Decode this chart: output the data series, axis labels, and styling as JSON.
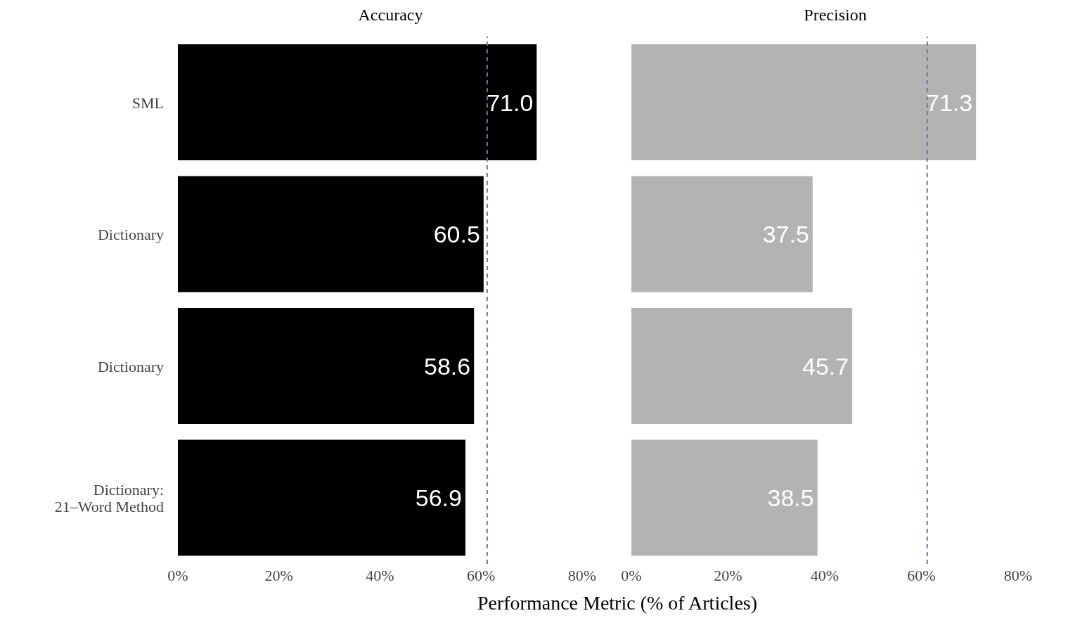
{
  "chart_data": [
    {
      "type": "bar",
      "orientation": "horizontal",
      "title": "Accuracy",
      "xlabel": "Performance Metric (% of Articles)",
      "categories": [
        "SML",
        "Dictionary",
        "Dictionary",
        "Dictionary: 21–Word Method"
      ],
      "values": [
        71.0,
        60.5,
        58.6,
        56.9
      ],
      "value_labels": [
        "71.0",
        "60.5",
        "58.6",
        "56.9"
      ],
      "color": "#000000",
      "xlim": [
        0,
        80
      ],
      "xticks": [
        {
          "value": 0,
          "label": "0%"
        },
        {
          "value": 20,
          "label": "20%"
        },
        {
          "value": 40,
          "label": "40%"
        },
        {
          "value": 60,
          "label": "60%"
        },
        {
          "value": 80,
          "label": "80%"
        }
      ],
      "ref_lines": [
        {
          "axis": "x",
          "value": 61.2,
          "color": "#7b6fa8",
          "line_style": "dashed"
        }
      ],
      "grid": false
    },
    {
      "type": "bar",
      "orientation": "horizontal",
      "title": "Precision",
      "categories": [
        null,
        null,
        null,
        null
      ],
      "values": [
        71.3,
        37.5,
        45.7,
        38.5
      ],
      "value_labels": [
        "71.3",
        "37.5",
        "45.7",
        "38.5"
      ],
      "color": "#b3b3b3",
      "xlim": [
        0,
        80
      ],
      "xticks": [
        {
          "value": 0,
          "label": "0%"
        },
        {
          "value": 20,
          "label": "20%"
        },
        {
          "value": 40,
          "label": "40%"
        },
        {
          "value": 60,
          "label": "60%"
        },
        {
          "value": 80,
          "label": "80%"
        }
      ],
      "ref_lines": [
        {
          "axis": "x",
          "value": 61.2,
          "color": "#7b6fa8",
          "line_style": "dashed"
        }
      ],
      "grid": false,
      "tick_labels": "x"
    }
  ]
}
